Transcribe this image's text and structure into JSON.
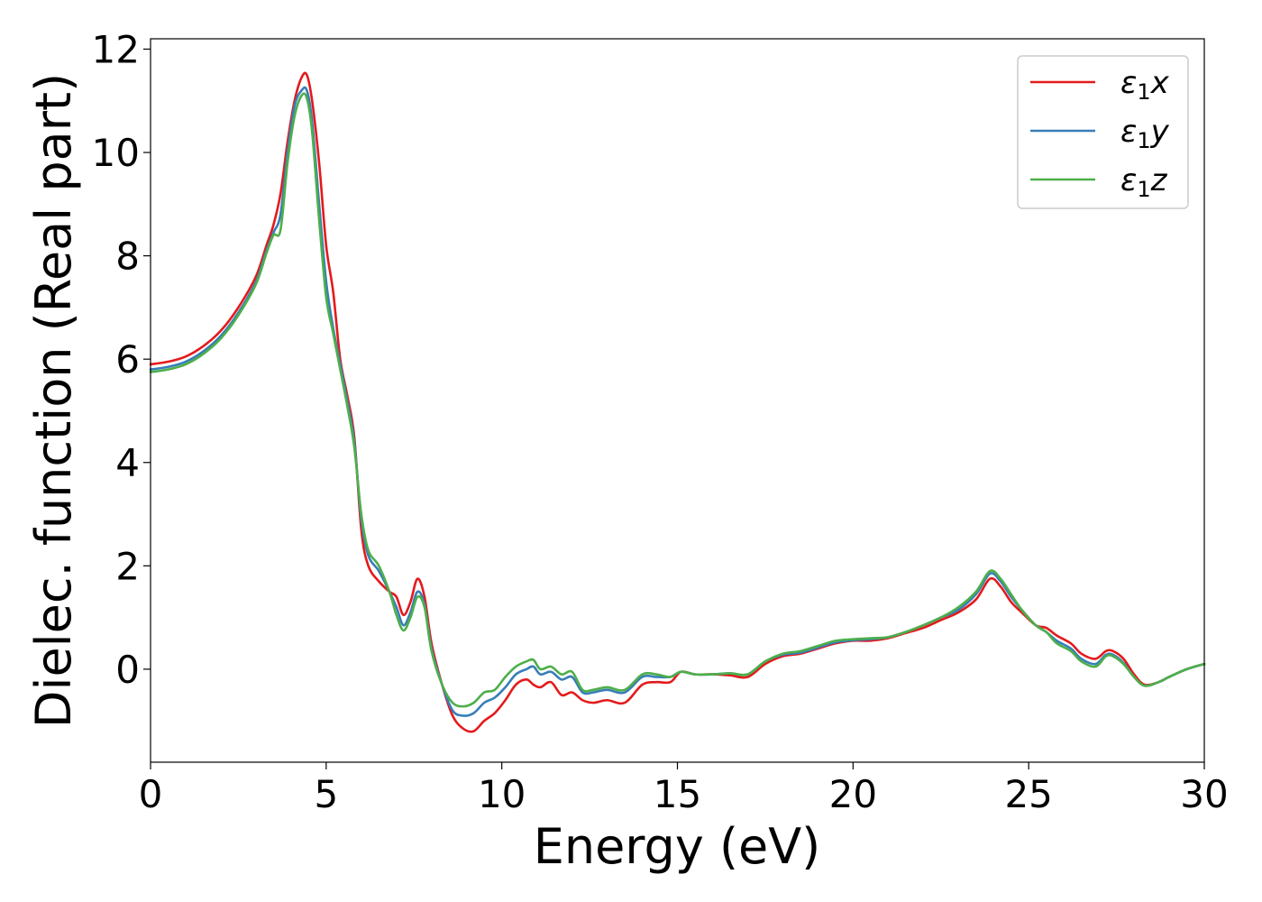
{
  "chart_data": {
    "type": "line",
    "xlabel": "Energy (eV)",
    "ylabel": "Dielec. function (Real part)",
    "xlim": [
      0,
      30
    ],
    "ylim": [
      -1.8,
      12.2
    ],
    "xticks": [
      0,
      5,
      10,
      15,
      20,
      25,
      30
    ],
    "yticks": [
      0,
      2,
      4,
      6,
      8,
      10,
      12
    ],
    "grid": false,
    "legend_position": "top-right",
    "series": [
      {
        "name": "ε1x",
        "legend_base": "ε",
        "legend_sub": "1",
        "legend_suffix": "x",
        "color": "#e41a1c",
        "x": [
          0,
          0.5,
          1,
          1.5,
          2,
          2.5,
          3,
          3.3,
          3.5,
          3.7,
          3.9,
          4.1,
          4.3,
          4.45,
          4.6,
          4.8,
          5,
          5.2,
          5.4,
          5.6,
          5.8,
          6,
          6.2,
          6.5,
          6.8,
          7,
          7.2,
          7.4,
          7.6,
          7.8,
          8,
          8.3,
          8.6,
          8.9,
          9.2,
          9.5,
          9.8,
          10.1,
          10.4,
          10.7,
          10.9,
          11.1,
          11.4,
          11.7,
          12,
          12.3,
          12.6,
          13,
          13.5,
          14,
          14.4,
          14.8,
          15.1,
          15.5,
          16,
          16.5,
          17,
          17.5,
          18,
          18.5,
          19,
          19.5,
          20,
          20.5,
          21,
          21.5,
          22,
          22.5,
          23,
          23.5,
          23.9,
          24.2,
          24.5,
          24.8,
          25.2,
          25.5,
          25.8,
          26.2,
          26.5,
          26.9,
          27.2,
          27.4,
          27.7,
          28,
          28.3,
          28.7,
          29,
          29.5,
          30
        ],
        "y": [
          5.9,
          5.95,
          6.05,
          6.25,
          6.55,
          7.0,
          7.6,
          8.2,
          8.6,
          9.2,
          10.2,
          11.0,
          11.45,
          11.5,
          11.0,
          9.8,
          8.2,
          7.3,
          6.0,
          5.3,
          4.5,
          2.7,
          2.0,
          1.7,
          1.5,
          1.4,
          1.05,
          1.3,
          1.75,
          1.4,
          0.5,
          -0.3,
          -0.9,
          -1.15,
          -1.2,
          -1.0,
          -0.85,
          -0.6,
          -0.3,
          -0.2,
          -0.3,
          -0.35,
          -0.25,
          -0.5,
          -0.45,
          -0.6,
          -0.65,
          -0.6,
          -0.65,
          -0.3,
          -0.25,
          -0.25,
          -0.05,
          -0.1,
          -0.1,
          -0.12,
          -0.15,
          0.1,
          0.25,
          0.3,
          0.4,
          0.5,
          0.55,
          0.55,
          0.6,
          0.7,
          0.8,
          0.95,
          1.1,
          1.35,
          1.75,
          1.6,
          1.3,
          1.1,
          0.85,
          0.8,
          0.65,
          0.5,
          0.3,
          0.2,
          0.35,
          0.35,
          0.2,
          -0.1,
          -0.3,
          -0.25,
          -0.15,
          0.0,
          0.1
        ]
      },
      {
        "name": "ε1y",
        "legend_base": "ε",
        "legend_sub": "1",
        "legend_suffix": "y",
        "color": "#377eb8",
        "x": [
          0,
          0.5,
          1,
          1.5,
          2,
          2.5,
          3,
          3.3,
          3.5,
          3.7,
          3.9,
          4.1,
          4.3,
          4.45,
          4.6,
          4.8,
          5,
          5.2,
          5.4,
          5.6,
          5.8,
          6,
          6.2,
          6.5,
          6.8,
          7,
          7.2,
          7.4,
          7.6,
          7.8,
          8,
          8.3,
          8.6,
          8.9,
          9.2,
          9.5,
          9.8,
          10.1,
          10.4,
          10.7,
          10.9,
          11.1,
          11.4,
          11.7,
          12,
          12.3,
          12.6,
          13,
          13.5,
          14,
          14.4,
          14.8,
          15.1,
          15.5,
          16,
          16.5,
          17,
          17.5,
          18,
          18.5,
          19,
          19.5,
          20,
          20.5,
          21,
          21.5,
          22,
          22.5,
          23,
          23.5,
          23.9,
          24.2,
          24.5,
          24.8,
          25.2,
          25.5,
          25.8,
          26.2,
          26.5,
          26.9,
          27.2,
          27.4,
          27.7,
          28,
          28.3,
          28.7,
          29,
          29.5,
          30
        ],
        "y": [
          5.8,
          5.85,
          5.95,
          6.15,
          6.45,
          6.9,
          7.5,
          8.1,
          8.45,
          8.8,
          10.0,
          10.9,
          11.2,
          11.2,
          10.6,
          9.0,
          7.5,
          6.6,
          5.9,
          5.2,
          4.4,
          2.9,
          2.2,
          1.9,
          1.5,
          1.2,
          0.85,
          1.1,
          1.5,
          1.25,
          0.4,
          -0.3,
          -0.8,
          -0.9,
          -0.85,
          -0.65,
          -0.55,
          -0.35,
          -0.1,
          0.0,
          0.05,
          -0.1,
          -0.05,
          -0.2,
          -0.15,
          -0.45,
          -0.45,
          -0.4,
          -0.45,
          -0.15,
          -0.15,
          -0.15,
          -0.05,
          -0.1,
          -0.1,
          -0.08,
          -0.1,
          0.15,
          0.28,
          0.32,
          0.42,
          0.52,
          0.56,
          0.58,
          0.62,
          0.72,
          0.85,
          1.0,
          1.15,
          1.45,
          1.85,
          1.7,
          1.4,
          1.15,
          0.85,
          0.72,
          0.55,
          0.4,
          0.2,
          0.1,
          0.28,
          0.28,
          0.12,
          -0.15,
          -0.32,
          -0.25,
          -0.15,
          0.0,
          0.1
        ]
      },
      {
        "name": "ε1z",
        "legend_base": "ε",
        "legend_sub": "1",
        "legend_suffix": "z",
        "color": "#4daf4a",
        "x": [
          0,
          0.5,
          1,
          1.5,
          2,
          2.5,
          3,
          3.3,
          3.5,
          3.7,
          3.9,
          4.1,
          4.3,
          4.45,
          4.6,
          4.8,
          5,
          5.2,
          5.4,
          5.6,
          5.8,
          6,
          6.2,
          6.5,
          6.8,
          7,
          7.2,
          7.4,
          7.6,
          7.8,
          8,
          8.3,
          8.6,
          8.9,
          9.2,
          9.5,
          9.8,
          10.1,
          10.4,
          10.7,
          10.9,
          11.1,
          11.4,
          11.7,
          12,
          12.3,
          12.6,
          13,
          13.5,
          14,
          14.4,
          14.8,
          15.1,
          15.5,
          16,
          16.5,
          17,
          17.5,
          18,
          18.5,
          19,
          19.5,
          20,
          20.5,
          21,
          21.5,
          22,
          22.5,
          23,
          23.5,
          23.9,
          24.2,
          24.5,
          24.8,
          25.2,
          25.5,
          25.8,
          26.2,
          26.5,
          26.9,
          27.2,
          27.4,
          27.7,
          28,
          28.3,
          28.7,
          29,
          29.5,
          30
        ],
        "y": [
          5.75,
          5.8,
          5.9,
          6.1,
          6.4,
          6.85,
          7.45,
          8.05,
          8.4,
          8.5,
          9.8,
          10.7,
          11.1,
          11.05,
          10.4,
          8.7,
          7.2,
          6.5,
          5.8,
          5.1,
          4.3,
          3.0,
          2.3,
          2.0,
          1.5,
          1.05,
          0.75,
          1.0,
          1.4,
          1.2,
          0.35,
          -0.3,
          -0.65,
          -0.72,
          -0.65,
          -0.45,
          -0.4,
          -0.15,
          0.05,
          0.15,
          0.18,
          0.0,
          0.05,
          -0.1,
          -0.05,
          -0.4,
          -0.4,
          -0.35,
          -0.4,
          -0.1,
          -0.1,
          -0.15,
          -0.05,
          -0.1,
          -0.1,
          -0.08,
          -0.1,
          0.15,
          0.3,
          0.35,
          0.45,
          0.55,
          0.58,
          0.6,
          0.62,
          0.72,
          0.85,
          1.0,
          1.2,
          1.5,
          1.9,
          1.75,
          1.45,
          1.15,
          0.85,
          0.72,
          0.5,
          0.35,
          0.15,
          0.05,
          0.25,
          0.25,
          0.1,
          -0.15,
          -0.32,
          -0.25,
          -0.15,
          0.0,
          0.1
        ]
      }
    ]
  }
}
